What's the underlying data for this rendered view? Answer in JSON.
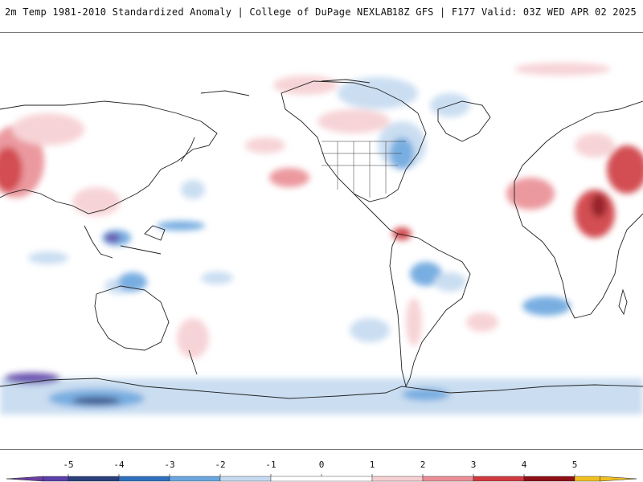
{
  "header": {
    "left_title": "2m Temp 1981-2010 Standardized Anomaly | College of DuPage NEXLAB",
    "right_title": "18Z GFS | F177 Valid: 03Z WED APR 02 2025"
  },
  "legend": {
    "range": [
      -6,
      6
    ],
    "ticks": [
      "-5",
      "-4",
      "-3",
      "-2",
      "-1",
      "0",
      "1",
      "2",
      "3",
      "4",
      "5"
    ],
    "tick_values": [
      -5,
      -4,
      -3,
      -2,
      -1,
      0,
      1,
      2,
      3,
      4,
      5
    ],
    "low_arrow_color": "#6a3fa0",
    "high_arrow_color": "#f0c020",
    "bins": [
      {
        "from": -5.5,
        "to": -5,
        "color": "#5b3fa8"
      },
      {
        "from": -5,
        "to": -4,
        "color": "#2a3f7a"
      },
      {
        "from": -4,
        "to": -3,
        "color": "#2f6fbf"
      },
      {
        "from": -3,
        "to": -2,
        "color": "#6aa6de"
      },
      {
        "from": -2,
        "to": -1,
        "color": "#c5daf0"
      },
      {
        "from": -1,
        "to": 1,
        "color": "#ffffff"
      },
      {
        "from": 1,
        "to": 2,
        "color": "#f6cfd2"
      },
      {
        "from": 2,
        "to": 3,
        "color": "#e98e94"
      },
      {
        "from": 3,
        "to": 4,
        "color": "#cf3a3f"
      },
      {
        "from": 4,
        "to": 5,
        "color": "#8e0f17"
      },
      {
        "from": 5,
        "to": 5.5,
        "color": "#f0c020"
      }
    ]
  },
  "map": {
    "projection": "equirectangular, Pacific-centered",
    "land_outline_color": "#222222",
    "ocean_color": "#ffffff"
  }
}
